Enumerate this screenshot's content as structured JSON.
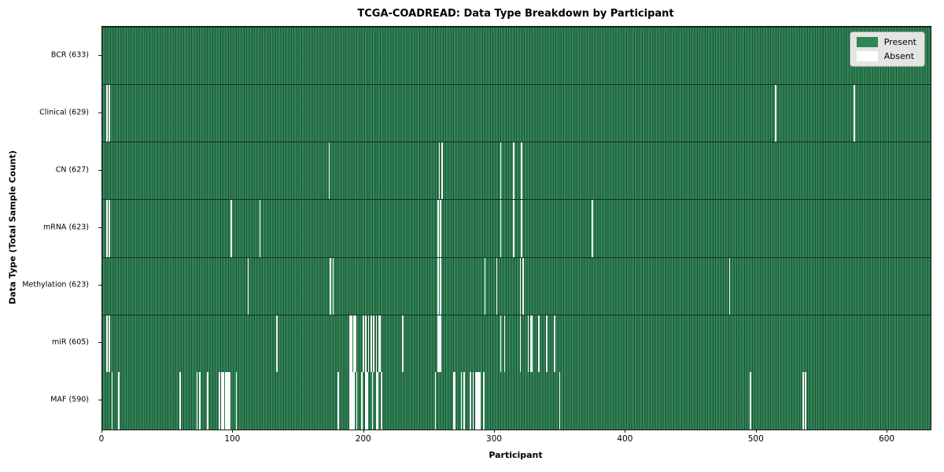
{
  "chart_data": {
    "type": "heatmap",
    "title": "TCGA-COADREAD: Data Type Breakdown by Participant",
    "xlabel": "Participant",
    "ylabel": "Data Type (Total Sample Count)",
    "n_participants": 633,
    "x_ticks": [
      0,
      100,
      200,
      300,
      400,
      500,
      600
    ],
    "grid": false,
    "legend_position": "upper right",
    "colors": {
      "present": "#2e8657",
      "absent": "#ffffff",
      "cell_edge": "#142e1f",
      "legend_bg": "#e2e5e2"
    },
    "legend": [
      {
        "label": "Present",
        "color": "#2e8657"
      },
      {
        "label": "Absent",
        "color": "#ffffff"
      }
    ],
    "rows": [
      {
        "name": "BCR",
        "count": 633,
        "label": "BCR (633)",
        "absent": []
      },
      {
        "name": "Clinical",
        "count": 629,
        "label": "Clinical (629)",
        "absent": [
          3,
          5,
          514,
          574
        ]
      },
      {
        "name": "CN",
        "count": 627,
        "label": "CN (627)",
        "absent": [
          173,
          257,
          259,
          304,
          314,
          320
        ]
      },
      {
        "name": "mRNA",
        "count": 623,
        "label": "mRNA (623)",
        "absent": [
          3,
          5,
          98,
          120,
          256,
          258,
          304,
          314,
          320,
          374
        ]
      },
      {
        "name": "Methylation",
        "count": 623,
        "label": "Methylation (623)",
        "absent": [
          111,
          174,
          176,
          256,
          258,
          292,
          301,
          319,
          321,
          479
        ]
      },
      {
        "name": "miR",
        "count": 605,
        "label": "miR (605)",
        "absent": [
          3,
          5,
          133,
          189,
          190,
          192,
          193,
          199,
          201,
          203,
          205,
          207,
          209,
          211,
          212,
          229,
          256,
          257,
          258,
          304,
          307,
          319,
          325,
          327,
          328,
          333,
          339,
          345
        ]
      },
      {
        "name": "MAF",
        "count": 590,
        "label": "MAF (590)",
        "absent": [
          7,
          12,
          59,
          72,
          74,
          80,
          89,
          91,
          92,
          94,
          95,
          96,
          97,
          102,
          180,
          189,
          190,
          191,
          192,
          194,
          198,
          201,
          202,
          206,
          209,
          210,
          213,
          254,
          268,
          269,
          274,
          276,
          281,
          283,
          285,
          286,
          287,
          288,
          291,
          349,
          495,
          535,
          537
        ]
      }
    ]
  }
}
